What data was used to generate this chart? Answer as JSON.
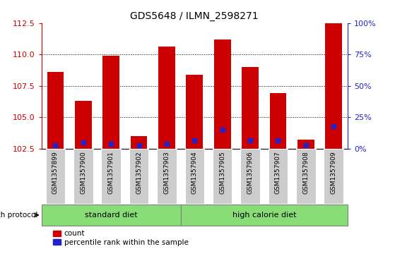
{
  "title": "GDS5648 / ILMN_2598271",
  "samples": [
    "GSM1357899",
    "GSM1357900",
    "GSM1357901",
    "GSM1357902",
    "GSM1357903",
    "GSM1357904",
    "GSM1357905",
    "GSM1357906",
    "GSM1357907",
    "GSM1357908",
    "GSM1357909"
  ],
  "red_values": [
    108.6,
    106.3,
    109.9,
    103.5,
    110.6,
    108.4,
    111.2,
    109.0,
    106.9,
    103.2,
    112.5
  ],
  "blue_percentiles": [
    2.5,
    5.0,
    3.5,
    2.5,
    3.5,
    6.5,
    15.0,
    6.5,
    6.5,
    2.5,
    17.5
  ],
  "y_min": 102.5,
  "y_max": 112.5,
  "y_ticks_left": [
    102.5,
    105.0,
    107.5,
    110.0,
    112.5
  ],
  "y_ticks_right": [
    0,
    25,
    50,
    75,
    100
  ],
  "bar_color": "#cc0000",
  "blue_color": "#2222cc",
  "group1_label": "standard diet",
  "group2_label": "high calorie diet",
  "group1_indices": [
    0,
    1,
    2,
    3,
    4
  ],
  "group2_indices": [
    5,
    6,
    7,
    8,
    9,
    10
  ],
  "group_protocol_label": "growth protocol",
  "group_bg_color": "#88dd77",
  "tick_bg_color": "#cccccc",
  "bar_width": 0.6,
  "legend_count_label": "count",
  "legend_percentile_label": "percentile rank within the sample",
  "grid_yticks": [
    105.0,
    107.5,
    110.0
  ],
  "left_axis_color": "#cc0000",
  "right_axis_color": "#2222cc"
}
